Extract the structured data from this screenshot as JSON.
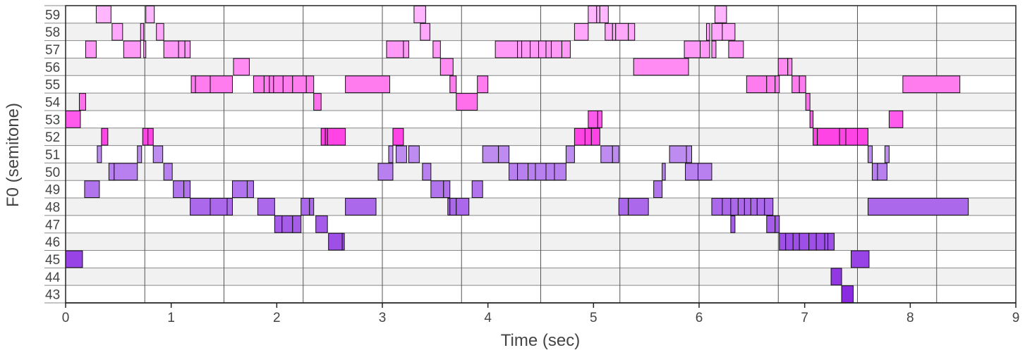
{
  "chart_data": {
    "type": "piano-roll",
    "xlabel": "Time (sec)",
    "ylabel": "F0 (semitone)",
    "xlim": [
      0,
      9
    ],
    "ylim": [
      43,
      59
    ],
    "x_ticks": [
      0,
      1,
      2,
      3,
      4,
      5,
      6,
      7,
      8,
      9
    ],
    "y_ticks": [
      43,
      44,
      45,
      46,
      47,
      48,
      49,
      50,
      51,
      52,
      53,
      54,
      55,
      56,
      57,
      58,
      59
    ],
    "grid": true,
    "colors": {
      "low": "#8a2be2",
      "high": "#ffb6ff",
      "mid": "#ff44e6"
    },
    "notes": [
      [
        0.0,
        0.16,
        45
      ],
      [
        0.0,
        0.14,
        53
      ],
      [
        0.13,
        0.19,
        54
      ],
      [
        0.18,
        0.32,
        49
      ],
      [
        0.19,
        0.29,
        57
      ],
      [
        0.3,
        0.34,
        51
      ],
      [
        0.34,
        0.4,
        52
      ],
      [
        0.29,
        0.43,
        59
      ],
      [
        0.41,
        0.46,
        50
      ],
      [
        0.44,
        0.54,
        58
      ],
      [
        0.46,
        0.68,
        50
      ],
      [
        0.55,
        0.71,
        57
      ],
      [
        0.68,
        0.72,
        51
      ],
      [
        0.73,
        0.78,
        52
      ],
      [
        0.71,
        0.74,
        58
      ],
      [
        0.74,
        0.76,
        57
      ],
      [
        0.76,
        0.84,
        59
      ],
      [
        0.78,
        0.83,
        52
      ],
      [
        0.83,
        0.92,
        51
      ],
      [
        0.86,
        0.93,
        58
      ],
      [
        0.93,
        1.01,
        50
      ],
      [
        0.93,
        1.07,
        57
      ],
      [
        1.07,
        1.13,
        57
      ],
      [
        1.13,
        1.18,
        57
      ],
      [
        1.02,
        1.12,
        49
      ],
      [
        1.12,
        1.18,
        49
      ],
      [
        1.18,
        1.37,
        48
      ],
      [
        1.19,
        1.23,
        55
      ],
      [
        1.23,
        1.37,
        55
      ],
      [
        1.37,
        1.58,
        55
      ],
      [
        1.37,
        1.53,
        48
      ],
      [
        1.53,
        1.58,
        48
      ],
      [
        1.58,
        1.72,
        49
      ],
      [
        1.72,
        1.78,
        49
      ],
      [
        1.59,
        1.74,
        56
      ],
      [
        1.78,
        1.88,
        55
      ],
      [
        1.88,
        1.93,
        55
      ],
      [
        1.93,
        1.97,
        55
      ],
      [
        1.97,
        2.06,
        55
      ],
      [
        2.06,
        2.15,
        55
      ],
      [
        2.15,
        2.28,
        55
      ],
      [
        2.28,
        2.35,
        55
      ],
      [
        1.82,
        1.98,
        48
      ],
      [
        1.98,
        2.05,
        47
      ],
      [
        2.05,
        2.15,
        47
      ],
      [
        2.15,
        2.23,
        47
      ],
      [
        2.23,
        2.31,
        48
      ],
      [
        2.31,
        2.35,
        48
      ],
      [
        2.35,
        2.42,
        54
      ],
      [
        2.37,
        2.48,
        47
      ],
      [
        2.42,
        2.46,
        52
      ],
      [
        2.46,
        2.48,
        52
      ],
      [
        2.48,
        2.65,
        52
      ],
      [
        2.49,
        2.62,
        46
      ],
      [
        2.62,
        2.64,
        46
      ],
      [
        2.65,
        2.94,
        48
      ],
      [
        2.65,
        3.07,
        55
      ],
      [
        2.96,
        3.1,
        50
      ],
      [
        3.06,
        3.1,
        51
      ],
      [
        3.1,
        3.2,
        52
      ],
      [
        3.13,
        3.23,
        51
      ],
      [
        3.04,
        3.2,
        57
      ],
      [
        3.2,
        3.25,
        57
      ],
      [
        3.25,
        3.3,
        51
      ],
      [
        3.25,
        3.35,
        51
      ],
      [
        3.3,
        3.41,
        59
      ],
      [
        3.36,
        3.45,
        58
      ],
      [
        3.38,
        3.46,
        50
      ],
      [
        3.46,
        3.58,
        49
      ],
      [
        3.58,
        3.64,
        49
      ],
      [
        3.48,
        3.55,
        57
      ],
      [
        3.55,
        3.67,
        56
      ],
      [
        3.62,
        3.64,
        48
      ],
      [
        3.64,
        3.7,
        48
      ],
      [
        3.7,
        3.82,
        48
      ],
      [
        3.64,
        3.7,
        55
      ],
      [
        3.7,
        3.9,
        54
      ],
      [
        3.9,
        4.0,
        55
      ],
      [
        3.85,
        3.95,
        49
      ],
      [
        3.95,
        4.1,
        51
      ],
      [
        4.1,
        4.2,
        51
      ],
      [
        4.07,
        4.28,
        57
      ],
      [
        4.28,
        4.32,
        57
      ],
      [
        4.32,
        4.4,
        57
      ],
      [
        4.4,
        4.48,
        57
      ],
      [
        4.48,
        4.55,
        57
      ],
      [
        4.55,
        4.6,
        57
      ],
      [
        4.6,
        4.7,
        57
      ],
      [
        4.7,
        4.78,
        57
      ],
      [
        4.2,
        4.28,
        50
      ],
      [
        4.28,
        4.38,
        50
      ],
      [
        4.38,
        4.45,
        50
      ],
      [
        4.45,
        4.55,
        50
      ],
      [
        4.55,
        4.63,
        50
      ],
      [
        4.63,
        4.74,
        50
      ],
      [
        4.74,
        4.82,
        51
      ],
      [
        4.82,
        4.92,
        52
      ],
      [
        4.92,
        4.98,
        52
      ],
      [
        4.98,
        5.06,
        52
      ],
      [
        4.82,
        4.95,
        58
      ],
      [
        4.95,
        5.04,
        53
      ],
      [
        5.04,
        5.08,
        53
      ],
      [
        4.95,
        5.03,
        59
      ],
      [
        5.03,
        5.06,
        59
      ],
      [
        5.06,
        5.14,
        59
      ],
      [
        5.11,
        5.18,
        58
      ],
      [
        5.18,
        5.21,
        58
      ],
      [
        5.21,
        5.33,
        58
      ],
      [
        5.33,
        5.39,
        58
      ],
      [
        5.07,
        5.18,
        51
      ],
      [
        5.18,
        5.24,
        51
      ],
      [
        5.24,
        5.33,
        48
      ],
      [
        5.33,
        5.52,
        48
      ],
      [
        5.38,
        5.9,
        56
      ],
      [
        5.57,
        5.65,
        49
      ],
      [
        5.65,
        5.68,
        50
      ],
      [
        5.72,
        5.88,
        51
      ],
      [
        5.88,
        5.93,
        51
      ],
      [
        5.87,
        5.99,
        50
      ],
      [
        5.99,
        6.12,
        50
      ],
      [
        5.86,
        6.01,
        57
      ],
      [
        6.01,
        6.1,
        57
      ],
      [
        6.07,
        6.1,
        58
      ],
      [
        6.12,
        6.22,
        58
      ],
      [
        6.15,
        6.26,
        59
      ],
      [
        6.12,
        6.16,
        57
      ],
      [
        6.22,
        6.34,
        58
      ],
      [
        6.28,
        6.42,
        57
      ],
      [
        6.12,
        6.22,
        48
      ],
      [
        6.22,
        6.3,
        48
      ],
      [
        6.3,
        6.37,
        48
      ],
      [
        6.37,
        6.43,
        48
      ],
      [
        6.43,
        6.49,
        48
      ],
      [
        6.49,
        6.55,
        48
      ],
      [
        6.55,
        6.62,
        48
      ],
      [
        6.62,
        6.7,
        48
      ],
      [
        6.3,
        6.34,
        47
      ],
      [
        6.45,
        6.64,
        55
      ],
      [
        6.64,
        6.72,
        55
      ],
      [
        6.72,
        6.76,
        55
      ],
      [
        6.64,
        6.72,
        47
      ],
      [
        6.72,
        6.76,
        47
      ],
      [
        6.75,
        6.84,
        56
      ],
      [
        6.84,
        6.88,
        56
      ],
      [
        6.76,
        6.82,
        46
      ],
      [
        6.82,
        6.89,
        46
      ],
      [
        6.89,
        6.95,
        46
      ],
      [
        6.95,
        7.04,
        46
      ],
      [
        7.04,
        7.11,
        46
      ],
      [
        7.11,
        7.19,
        46
      ],
      [
        7.19,
        7.22,
        46
      ],
      [
        7.22,
        7.28,
        46
      ],
      [
        6.88,
        6.95,
        55
      ],
      [
        6.95,
        7.01,
        55
      ],
      [
        7.01,
        7.05,
        54
      ],
      [
        7.05,
        7.08,
        53
      ],
      [
        7.08,
        7.12,
        52
      ],
      [
        7.12,
        7.33,
        52
      ],
      [
        7.33,
        7.39,
        52
      ],
      [
        7.39,
        7.5,
        52
      ],
      [
        7.5,
        7.6,
        52
      ],
      [
        7.25,
        7.35,
        44
      ],
      [
        7.35,
        7.46,
        43
      ],
      [
        7.44,
        7.61,
        45
      ],
      [
        7.6,
        7.64,
        51
      ],
      [
        7.64,
        7.69,
        50
      ],
      [
        7.69,
        7.78,
        50
      ],
      [
        7.76,
        7.8,
        51
      ],
      [
        7.8,
        7.93,
        53
      ],
      [
        7.6,
        8.55,
        48
      ],
      [
        7.93,
        8.47,
        55
      ]
    ]
  }
}
